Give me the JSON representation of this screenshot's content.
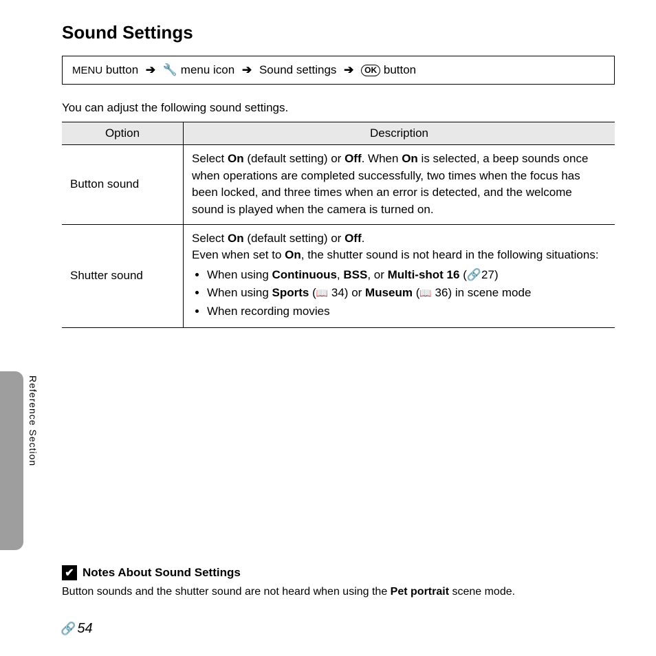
{
  "title": "Sound Settings",
  "nav": {
    "menu_label": "MENU",
    "part1": " button",
    "part2": " menu icon",
    "part3": " Sound settings",
    "part4": " button",
    "ok_label": "OK"
  },
  "intro": "You can adjust the following sound settings.",
  "table": {
    "headers": [
      "Option",
      "Description"
    ],
    "rows": [
      {
        "option": "Button sound",
        "desc_pre": "Select ",
        "on1": "On",
        "desc_mid1": " (default setting) or ",
        "off1": "Off",
        "desc_mid2": ". When ",
        "on2": "On",
        "desc_post": " is selected, a beep sounds once when operations are completed successfully, two times when the focus has been locked, and three times when an error is detected, and the welcome sound is played when the camera is turned on."
      },
      {
        "option": "Shutter sound",
        "line1_pre": "Select ",
        "l1_on": "On",
        "line1_mid": " (default setting) or ",
        "l1_off": "Off",
        "line1_end": ".",
        "line2_pre": "Even when set to ",
        "l2_on": "On",
        "line2_post": ", the shutter sound is not heard in the following situations:",
        "bullets": [
          {
            "pre": "When using ",
            "b1": "Continuous",
            "mid1": ", ",
            "b2": "BSS",
            "mid2": ", or ",
            "b3": "Multi-shot 16",
            "ref": " (",
            "ref_icon": "🔗",
            "ref_num": "27)",
            "post": ""
          },
          {
            "pre": "When using ",
            "b1": "Sports",
            "ref1": " (📖 34) or ",
            "b2": "Museum",
            "ref2": " (📖 36) in scene mode"
          },
          {
            "pre": "When recording movies"
          }
        ]
      }
    ]
  },
  "side_label": "Reference Section",
  "notes": {
    "heading": "Notes About Sound Settings",
    "body_pre": "Button sounds and the shutter sound are not heard when using the ",
    "body_bold": "Pet portrait",
    "body_post": " scene mode."
  },
  "page_number": "54",
  "colors": {
    "header_bg": "#e8e8e8",
    "side_tab": "#9e9e9e"
  }
}
